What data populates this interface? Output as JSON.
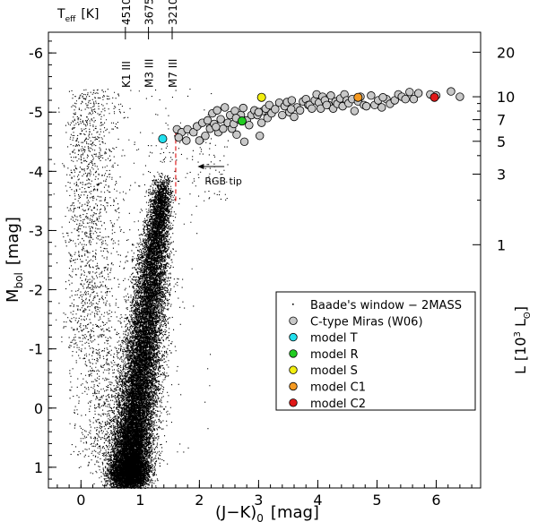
{
  "chart_data": {
    "type": "scatter",
    "xlabel_main": "(J−K)",
    "xlabel_sub": "0",
    "xlabel_unit": "[mag]",
    "ylabel_main": "M",
    "ylabel_sub": "bol",
    "ylabel_unit": "[mag]",
    "y2label_main": "L",
    "y2label_bracket_open": "[10",
    "y2label_sup": "3",
    "y2label_mid": " L",
    "y2label_sub": "ʘ",
    "y2label_close": "]",
    "xlim": [
      -0.55,
      6.75
    ],
    "ylim": [
      1.35,
      -6.35
    ],
    "x_ticks": [
      0,
      1,
      2,
      3,
      4,
      5,
      6
    ],
    "x_tick_labels": [
      "0",
      "1",
      "2",
      "3",
      "4",
      "5",
      "6"
    ],
    "y_ticks": [
      1,
      0,
      -1,
      -2,
      -3,
      -4,
      -5,
      -6
    ],
    "y_tick_labels": [
      "1",
      "0",
      "-1",
      "-2",
      "-3",
      "-4",
      "-5",
      "-6"
    ],
    "right_ticks": [
      {
        "value": 20,
        "label": "20"
      },
      {
        "value": 10,
        "label": "10"
      },
      {
        "value": 7,
        "label": "7"
      },
      {
        "value": 5,
        "label": "5"
      },
      {
        "value": 3,
        "label": "3"
      },
      {
        "value": 1,
        "label": "1"
      }
    ],
    "teff_axis_label_main": "T",
    "teff_axis_label_sub": "eff",
    "teff_axis_label_unit": "[K]",
    "teff_markers": [
      {
        "x": 0.75,
        "teff": "4510",
        "spectral_type": "K1 III"
      },
      {
        "x": 1.14,
        "teff": "3675",
        "spectral_type": "M3 III"
      },
      {
        "x": 1.54,
        "teff": "3210",
        "spectral_type": "M7 III"
      }
    ],
    "rgb_tip": {
      "label": "RGB tip",
      "x": 1.6,
      "y_range": [
        -3.5,
        -4.75
      ],
      "arrow_from_x": 2.42,
      "arrow_to_x": 1.97,
      "y": -4.08
    },
    "legend_position": "lower-right",
    "legend": [
      {
        "label": "Baade's window − 2MASS",
        "marker": "dot",
        "color": "#000000"
      },
      {
        "label": "C-type Miras (W06)",
        "marker": "circle",
        "color": "#c8c8c8"
      },
      {
        "label": "model T",
        "marker": "circle",
        "color": "#22e0ee"
      },
      {
        "label": "model R",
        "marker": "circle",
        "color": "#22cc22"
      },
      {
        "label": "model S",
        "marker": "circle",
        "color": "#f2ee10"
      },
      {
        "label": "model C1",
        "marker": "circle",
        "color": "#f59a22"
      },
      {
        "label": "model C2",
        "marker": "circle",
        "color": "#e01818"
      }
    ],
    "series": [
      {
        "name": "Baade's window − 2MASS",
        "description_of_distribution": "dense cloud of ~25000 field stars; giant branch from (0.8, 1.2) rising to (1.35, -3.8)",
        "distribution": {
          "branch_start": [
            0.8,
            1.2
          ],
          "branch_end": [
            1.37,
            -3.75
          ],
          "main_count": 22000,
          "dwarf_count": 1600,
          "scatter_count": 700
        }
      },
      {
        "name": "C-type Miras (W06)",
        "points": [
          [
            1.62,
            -4.71
          ],
          [
            1.7,
            -4.66
          ],
          [
            1.8,
            -4.71
          ],
          [
            1.65,
            -4.57
          ],
          [
            1.9,
            -4.66
          ],
          [
            1.96,
            -4.76
          ],
          [
            2.05,
            -4.82
          ],
          [
            2.0,
            -4.52
          ],
          [
            2.1,
            -4.6
          ],
          [
            2.14,
            -4.86
          ],
          [
            2.18,
            -4.72
          ],
          [
            2.22,
            -4.98
          ],
          [
            2.25,
            -4.8
          ],
          [
            2.3,
            -5.03
          ],
          [
            2.32,
            -4.66
          ],
          [
            2.36,
            -4.88
          ],
          [
            2.4,
            -4.72
          ],
          [
            2.43,
            -5.08
          ],
          [
            2.48,
            -4.82
          ],
          [
            2.52,
            -4.95
          ],
          [
            2.55,
            -4.72
          ],
          [
            2.58,
            -4.8
          ],
          [
            2.6,
            -5.02
          ],
          [
            2.63,
            -4.62
          ],
          [
            2.66,
            -4.88
          ],
          [
            2.7,
            -4.95
          ],
          [
            2.74,
            -5.07
          ],
          [
            2.76,
            -4.5
          ],
          [
            2.8,
            -4.86
          ],
          [
            2.84,
            -4.78
          ],
          [
            2.88,
            -4.95
          ],
          [
            2.93,
            -5.03
          ],
          [
            2.98,
            -4.95
          ],
          [
            3.02,
            -4.6
          ],
          [
            3.05,
            -4.82
          ],
          [
            3.08,
            -5.02
          ],
          [
            3.12,
            -5.06
          ],
          [
            3.15,
            -4.9
          ],
          [
            3.18,
            -5.12
          ],
          [
            3.22,
            -4.98
          ],
          [
            3.28,
            -5.05
          ],
          [
            3.35,
            -5.16
          ],
          [
            3.4,
            -4.95
          ],
          [
            3.44,
            -5.1
          ],
          [
            3.48,
            -5.17
          ],
          [
            3.52,
            -5.0
          ],
          [
            3.56,
            -5.2
          ],
          [
            3.6,
            -4.92
          ],
          [
            3.65,
            -5.08
          ],
          [
            3.7,
            -5.03
          ],
          [
            3.75,
            -5.18
          ],
          [
            3.8,
            -5.22
          ],
          [
            3.84,
            -5.12
          ],
          [
            3.86,
            -5.12
          ],
          [
            3.9,
            -5.06
          ],
          [
            3.95,
            -5.2
          ],
          [
            3.98,
            -5.3
          ],
          [
            4.02,
            -5.16
          ],
          [
            4.05,
            -5.06
          ],
          [
            4.08,
            -5.26
          ],
          [
            4.12,
            -5.2
          ],
          [
            4.18,
            -5.12
          ],
          [
            4.22,
            -5.28
          ],
          [
            4.26,
            -5.06
          ],
          [
            4.3,
            -5.18
          ],
          [
            4.33,
            -5.14
          ],
          [
            4.38,
            -5.23
          ],
          [
            4.42,
            -5.1
          ],
          [
            4.45,
            -5.3
          ],
          [
            4.49,
            -5.2
          ],
          [
            4.52,
            -5.15
          ],
          [
            4.58,
            -5.22
          ],
          [
            4.62,
            -5.02
          ],
          [
            4.68,
            -5.18
          ],
          [
            4.72,
            -5.26
          ],
          [
            4.78,
            -5.12
          ],
          [
            4.82,
            -5.1
          ],
          [
            4.9,
            -5.28
          ],
          [
            4.96,
            -5.12
          ],
          [
            5.02,
            -5.2
          ],
          [
            5.08,
            -5.08
          ],
          [
            5.16,
            -5.22
          ],
          [
            5.22,
            -5.14
          ],
          [
            5.3,
            -5.2
          ],
          [
            5.36,
            -5.3
          ],
          [
            5.42,
            -5.26
          ],
          [
            5.48,
            -5.22
          ],
          [
            5.55,
            -5.34
          ],
          [
            5.62,
            -5.22
          ],
          [
            5.7,
            -5.32
          ],
          [
            6.0,
            -5.28
          ],
          [
            6.25,
            -5.35
          ],
          [
            6.4,
            -5.26
          ],
          [
            1.78,
            -4.52
          ],
          [
            2.28,
            -4.75
          ],
          [
            2.62,
            -4.9
          ],
          [
            3.0,
            -5.0
          ],
          [
            3.55,
            -5.05
          ],
          [
            4.15,
            -5.12
          ],
          [
            5.1,
            -5.25
          ],
          [
            5.9,
            -5.3
          ]
        ]
      },
      {
        "name": "model T",
        "points": [
          [
            1.38,
            -4.55
          ]
        ]
      },
      {
        "name": "model R",
        "points": [
          [
            2.72,
            -4.85
          ]
        ]
      },
      {
        "name": "model S",
        "points": [
          [
            3.05,
            -5.25
          ]
        ]
      },
      {
        "name": "model C1",
        "points": [
          [
            4.68,
            -5.25
          ]
        ]
      },
      {
        "name": "model C2",
        "points": [
          [
            5.97,
            -5.25
          ]
        ]
      }
    ]
  }
}
